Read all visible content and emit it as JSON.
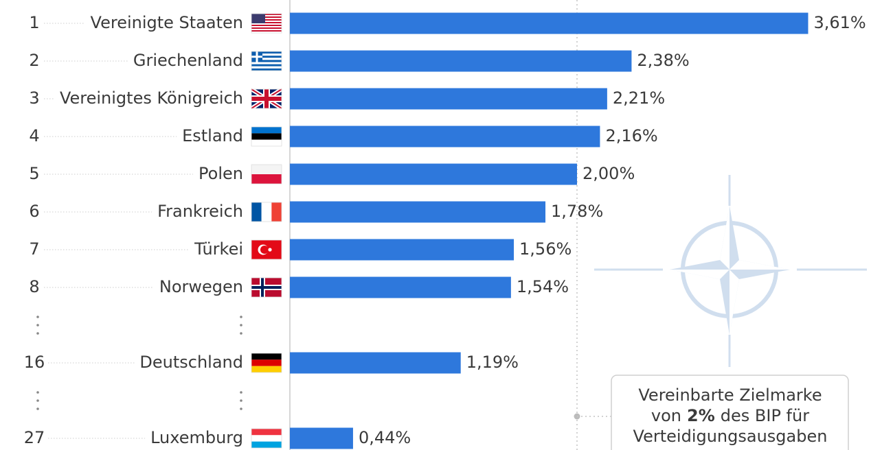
{
  "chart_data": {
    "type": "bar",
    "orientation": "horizontal",
    "ranks": [
      "1",
      "2",
      "3",
      "4",
      "5",
      "6",
      "7",
      "8",
      "16",
      "27"
    ],
    "categories": [
      "Vereinigte Staaten",
      "Griechenland",
      "Vereinigtes Königreich",
      "Estland",
      "Polen",
      "Frankreich",
      "Türkei",
      "Norwegen",
      "Deutschland",
      "Luxemburg"
    ],
    "values": [
      3.61,
      2.38,
      2.21,
      2.16,
      2.0,
      1.78,
      1.56,
      1.54,
      1.19,
      0.44
    ],
    "value_labels": [
      "3,61%",
      "2,38%",
      "2,21%",
      "2,16%",
      "2,00%",
      "1,78%",
      "1,56%",
      "1,54%",
      "1,19%",
      "0,44%"
    ],
    "color": "#2e78dc",
    "xlim": [
      0,
      4
    ],
    "target": 2,
    "annotation": {
      "line1": "Vereinbarte Zielmarke",
      "line2": [
        "von",
        "2%",
        "des BIP für"
      ],
      "line3": "Verteidigungsausgaben"
    }
  }
}
